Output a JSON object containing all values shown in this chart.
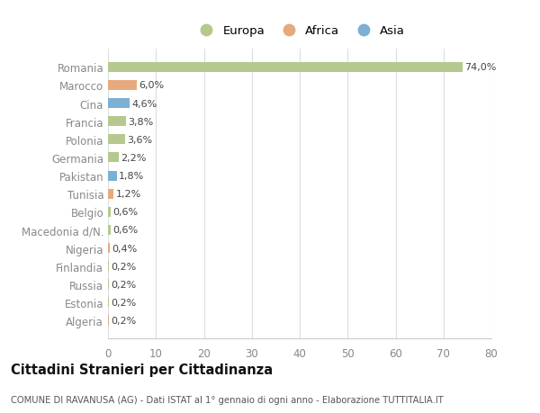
{
  "countries": [
    "Romania",
    "Marocco",
    "Cina",
    "Francia",
    "Polonia",
    "Germania",
    "Pakistan",
    "Tunisia",
    "Belgio",
    "Macedonia d/N.",
    "Nigeria",
    "Finlandia",
    "Russia",
    "Estonia",
    "Algeria"
  ],
  "values": [
    74.0,
    6.0,
    4.6,
    3.8,
    3.6,
    2.2,
    1.8,
    1.2,
    0.6,
    0.6,
    0.4,
    0.2,
    0.2,
    0.2,
    0.2
  ],
  "labels": [
    "74,0%",
    "6,0%",
    "4,6%",
    "3,8%",
    "3,6%",
    "2,2%",
    "1,8%",
    "1,2%",
    "0,6%",
    "0,6%",
    "0,4%",
    "0,2%",
    "0,2%",
    "0,2%",
    "0,2%"
  ],
  "continents": [
    "Europa",
    "Africa",
    "Asia",
    "Europa",
    "Europa",
    "Europa",
    "Asia",
    "Africa",
    "Europa",
    "Europa",
    "Africa",
    "Europa",
    "Europa",
    "Europa",
    "Africa"
  ],
  "colors": {
    "Europa": "#b5c98e",
    "Africa": "#e8a97e",
    "Asia": "#7bafd4"
  },
  "background_color": "#ffffff",
  "title": "Cittadini Stranieri per Cittadinanza",
  "subtitle": "COMUNE DI RAVANUSA (AG) - Dati ISTAT al 1° gennaio di ogni anno - Elaborazione TUTTITALIA.IT",
  "xlim": [
    0,
    80
  ],
  "xticks": [
    0,
    10,
    20,
    30,
    40,
    50,
    60,
    70,
    80
  ]
}
